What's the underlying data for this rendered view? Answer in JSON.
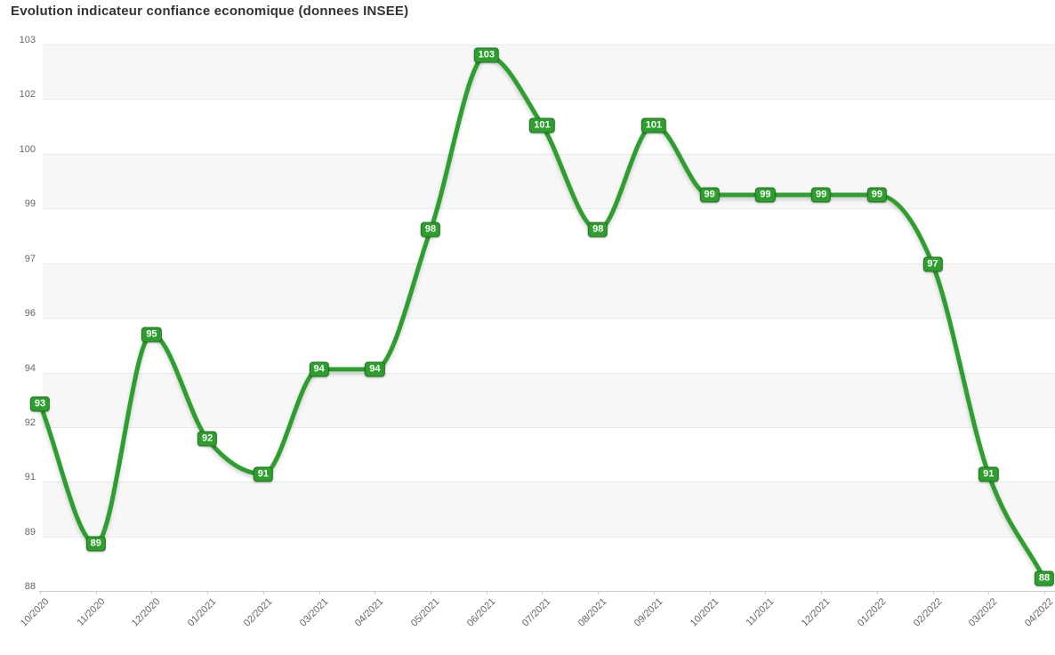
{
  "title": "Evolution indicateur confiance economique (donnees INSEE)",
  "chart_data": {
    "type": "line",
    "title": "Evolution indicateur confiance economique (donnees INSEE)",
    "categories": [
      "10/2020",
      "11/2020",
      "12/2020",
      "01/2021",
      "02/2021",
      "03/2021",
      "04/2021",
      "05/2021",
      "06/2021",
      "07/2021",
      "08/2021",
      "09/2021",
      "10/2021",
      "11/2021",
      "12/2021",
      "01/2022",
      "02/2022",
      "03/2022",
      "04/2022"
    ],
    "values": [
      93,
      89,
      95,
      92,
      91,
      94,
      94,
      98,
      103,
      101,
      98,
      101,
      99,
      99,
      99,
      99,
      97,
      91,
      88
    ],
    "data_labels_visible": true,
    "y_tick_labels": [
      "103",
      "102",
      "100",
      "99",
      "97",
      "96",
      "94",
      "92",
      "91",
      "89",
      "88"
    ],
    "ylim": [
      88,
      103
    ],
    "xlabel": "",
    "ylabel": "",
    "legend": "none",
    "grid": "horizontal",
    "plot_bands": "alternating",
    "colors": {
      "line": "#2e9e2e",
      "data_label_bg": "#2e9e2e",
      "data_label_text": "#ffffff",
      "band": "#f7f7f7",
      "gridline": "#e9e9e9",
      "axis_line": "#cccccc",
      "axis_text": "#666666",
      "title_text": "#333333",
      "background": "#ffffff"
    }
  }
}
